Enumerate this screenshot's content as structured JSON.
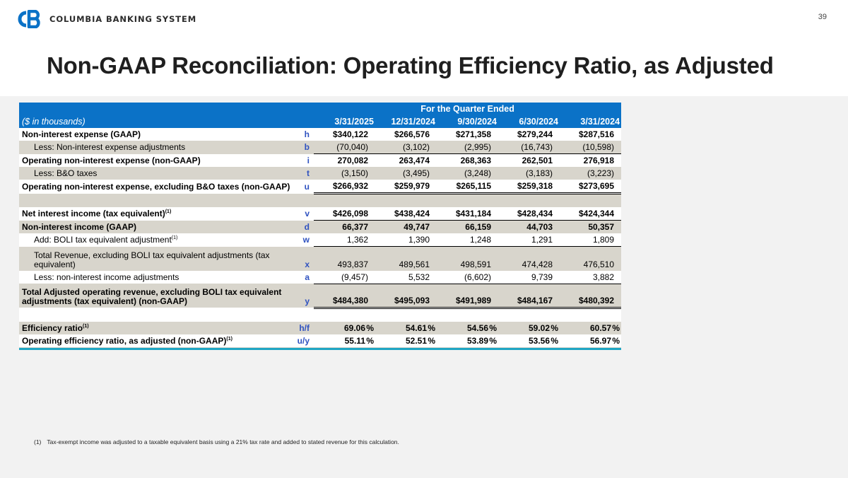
{
  "header": {
    "company_name": "COLUMBIA BANKING SYSTEM",
    "logo_icon": "cb-monogram-logo",
    "brand_color": "#0b72c7",
    "page_number": "39"
  },
  "title": "Non-GAAP Reconciliation: Operating Efficiency Ratio, as Adjusted",
  "table": {
    "period_header": "For the Quarter Ended",
    "units_label": "($ in thousands)",
    "columns": [
      "3/31/2025",
      "12/31/2024",
      "9/30/2024",
      "6/30/2024",
      "3/31/2024"
    ],
    "rows": [
      {
        "label": "Non-interest expense (GAAP)",
        "sup": "",
        "key": "h",
        "values": [
          "$340,122",
          "$266,576",
          "$271,358",
          "$279,244",
          "$287,516"
        ]
      },
      {
        "label": "Less: Non-interest expense adjustments",
        "sup": "",
        "key": "b",
        "values": [
          "(70,040)",
          "(3,102)",
          "(2,995)",
          "(16,743)",
          "(10,598)"
        ]
      },
      {
        "label": "Operating non-interest expense (non-GAAP)",
        "sup": "",
        "key": "i",
        "values": [
          "270,082",
          "263,474",
          "268,363",
          "262,501",
          "276,918"
        ]
      },
      {
        "label": "Less: B&O taxes",
        "sup": "",
        "key": "t",
        "values": [
          "(3,150)",
          "(3,495)",
          "(3,248)",
          "(3,183)",
          "(3,223)"
        ]
      },
      {
        "label": "Operating non-interest expense, excluding B&O taxes (non-GAAP)",
        "sup": "",
        "key": "u",
        "values": [
          "$266,932",
          "$259,979",
          "$265,115",
          "$259,318",
          "$273,695"
        ]
      },
      {
        "label": "Net interest income (tax equivalent)",
        "sup": "(1)",
        "key": "v",
        "values": [
          "$426,098",
          "$438,424",
          "$431,184",
          "$428,434",
          "$424,344"
        ]
      },
      {
        "label": "Non-interest income (GAAP)",
        "sup": "",
        "key": "d",
        "values": [
          "66,377",
          "49,747",
          "66,159",
          "44,703",
          "50,357"
        ]
      },
      {
        "label": "Add: BOLI tax equivalent adjustment",
        "sup": "(1)",
        "key": "w",
        "values": [
          "1,362",
          "1,390",
          "1,248",
          "1,291",
          "1,809"
        ]
      },
      {
        "label": "Total Revenue, excluding BOLI tax equivalent adjustments (tax equivalent)",
        "sup": "",
        "key": "x",
        "values": [
          "493,837",
          "489,561",
          "498,591",
          "474,428",
          "476,510"
        ]
      },
      {
        "label": "Less: non-interest income adjustments",
        "sup": "",
        "key": "a",
        "values": [
          "(9,457)",
          "5,532",
          "(6,602)",
          "9,739",
          "3,882"
        ]
      },
      {
        "label": "Total Adjusted operating revenue, excluding BOLI tax equivalent adjustments (tax equivalent) (non-GAAP)",
        "sup": "",
        "key": "y",
        "values": [
          "$484,380",
          "$495,093",
          "$491,989",
          "$484,167",
          "$480,392"
        ]
      },
      {
        "label": "Efficiency ratio",
        "sup": "(1)",
        "key": "h/f",
        "values": [
          "69.06",
          "54.61",
          "54.56",
          "59.02",
          "60.57"
        ],
        "unit": "%"
      },
      {
        "label": "Operating efficiency ratio, as adjusted (non-GAAP)",
        "sup": "(1)",
        "key": "u/y",
        "values": [
          "55.11",
          "52.51",
          "53.89",
          "53.56",
          "56.97"
        ],
        "unit": "%"
      }
    ]
  },
  "footnote": {
    "number": "(1)",
    "text": "Tax-exempt income was adjusted to a taxable equivalent basis using a 21% tax rate and added to stated revenue for this calculation."
  }
}
